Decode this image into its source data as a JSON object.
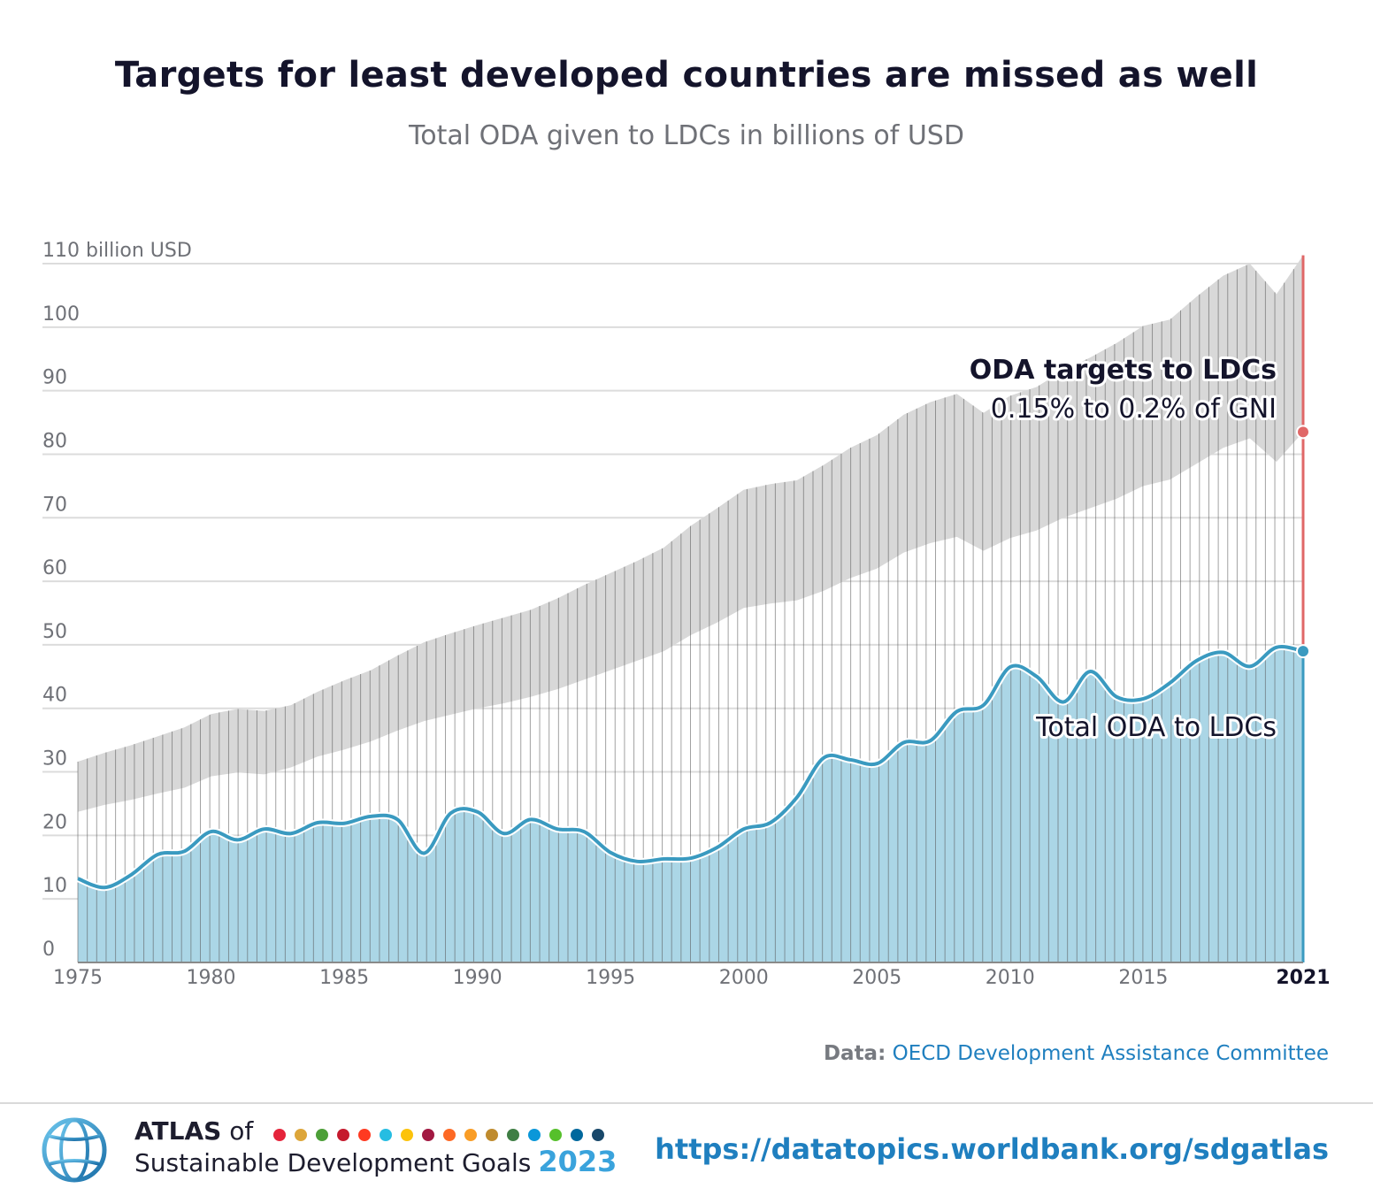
{
  "header": {
    "title": "Targets for least developed countries are missed as well",
    "subtitle": "Total ODA given to LDCs in billions of USD"
  },
  "chart_data": {
    "type": "area",
    "xlim": [
      1975,
      2021
    ],
    "ylim": [
      0,
      110
    ],
    "y_axis_top_label": "110 billion USD",
    "y_ticks": [
      "0",
      "10",
      "20",
      "30",
      "40",
      "50",
      "60",
      "70",
      "80",
      "90",
      "100"
    ],
    "x_ticks": [
      "1975",
      "1980",
      "1985",
      "1990",
      "1995",
      "2000",
      "2005",
      "2010",
      "2015",
      "2021"
    ],
    "grid": true,
    "x": [
      1975,
      1976,
      1977,
      1978,
      1979,
      1980,
      1981,
      1982,
      1983,
      1984,
      1985,
      1986,
      1987,
      1988,
      1989,
      1990,
      1991,
      1992,
      1993,
      1994,
      1995,
      1996,
      1997,
      1998,
      1999,
      2000,
      2001,
      2002,
      2003,
      2004,
      2005,
      2006,
      2007,
      2008,
      2009,
      2010,
      2011,
      2012,
      2013,
      2014,
      2015,
      2016,
      2017,
      2018,
      2019,
      2020,
      2021
    ],
    "series": [
      {
        "name": "Total ODA to LDCs",
        "color": "#3a9ac0",
        "fill": "#abd6e6",
        "values": [
          13.2,
          11.8,
          13.8,
          17.0,
          17.5,
          20.6,
          19.3,
          21.0,
          20.3,
          22.0,
          21.9,
          23.0,
          22.5,
          17.2,
          23.5,
          23.7,
          20.3,
          22.5,
          21.0,
          20.6,
          17.3,
          15.9,
          16.3,
          16.4,
          18.1,
          21.0,
          22.0,
          26.0,
          32.2,
          31.9,
          31.3,
          34.6,
          34.9,
          39.5,
          40.5,
          46.5,
          45.0,
          41.0,
          45.8,
          41.8,
          41.5,
          44.0,
          47.5,
          48.8,
          46.6,
          49.6,
          49.0
        ]
      },
      {
        "name": "ODA targets to LDCs",
        "label_line2": "0.15% to 0.2% of GNI",
        "color": "#e06767",
        "fill": "#d8d8d8",
        "lower": [
          23.7,
          24.8,
          25.6,
          26.6,
          27.5,
          29.3,
          29.9,
          29.6,
          30.7,
          32.4,
          33.5,
          34.8,
          36.5,
          38.0,
          39.0,
          40.0,
          40.8,
          41.8,
          43.0,
          44.5,
          46.0,
          47.5,
          49.0,
          51.5,
          53.5,
          55.8,
          56.5,
          57.0,
          58.5,
          60.5,
          62.0,
          64.5,
          66.0,
          67.0,
          64.8,
          66.8,
          68.0,
          70.0,
          71.5,
          73.0,
          75.0,
          76.0,
          78.5,
          81.0,
          82.5,
          78.8,
          83.5
        ],
        "upper": [
          31.6,
          33.0,
          34.2,
          35.6,
          37.0,
          39.1,
          39.9,
          39.6,
          40.5,
          42.6,
          44.4,
          46.0,
          48.3,
          50.4,
          51.8,
          53.1,
          54.3,
          55.5,
          57.3,
          59.4,
          61.3,
          63.2,
          65.3,
          68.7,
          71.5,
          74.4,
          75.3,
          75.9,
          78.3,
          81.0,
          83.0,
          86.2,
          88.2,
          89.5,
          86.5,
          89.2,
          90.6,
          93.2,
          95.2,
          97.5,
          100.2,
          101.2,
          104.8,
          108.1,
          110.0,
          105.2,
          111.3
        ]
      }
    ],
    "endpoints": {
      "total_2021": 49.0,
      "target_2021": 83.5
    }
  },
  "source": {
    "label": "Data:",
    "text": "OECD Development Assistance Committee"
  },
  "footer": {
    "atlas_word": "ATLAS",
    "of_word": "of",
    "line2": "Sustainable Development Goals",
    "year": "2023",
    "url": "https://datatopics.worldbank.org/sdgatlas",
    "sdg_colors": [
      "#e5243b",
      "#dda63a",
      "#4c9f38",
      "#c5192d",
      "#ff3a21",
      "#26bde2",
      "#fcc30b",
      "#a21942",
      "#fd6925",
      "#f99d26",
      "#bf8b2e",
      "#3f7e44",
      "#0a97d9",
      "#56c02b",
      "#00689d",
      "#19486a"
    ]
  }
}
